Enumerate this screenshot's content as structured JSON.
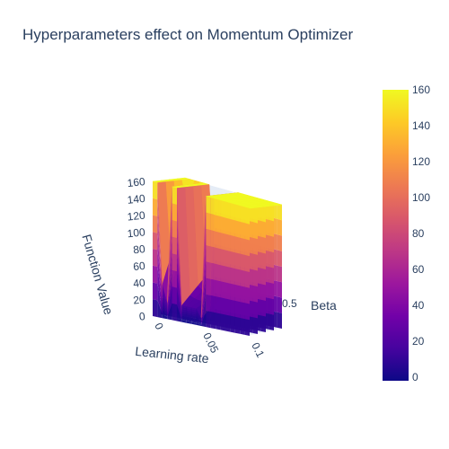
{
  "chart_data": {
    "type": "surface",
    "title": "Hyperparameters effect on Momentum Optimizer",
    "x_axis": {
      "label": "Learning rate",
      "ticks": [
        "0",
        "0.05",
        "0.1"
      ],
      "range": [
        0,
        0.1
      ]
    },
    "y_axis": {
      "label": "Beta",
      "ticks": [
        "0.5"
      ],
      "range": [
        0,
        1
      ]
    },
    "z_axis": {
      "label": "Function Value",
      "ticks": [
        "0",
        "20",
        "40",
        "60",
        "80",
        "100",
        "120",
        "140",
        "160"
      ],
      "range": [
        0,
        160
      ]
    },
    "colorbar": {
      "ticks": [
        "0",
        "20",
        "40",
        "60",
        "80",
        "100",
        "120",
        "140",
        "160"
      ],
      "range": [
        0,
        160
      ]
    },
    "colorscale": [
      "#0d0887",
      "#46039f",
      "#7201a8",
      "#9c179e",
      "#bd3786",
      "#d8576b",
      "#ed7953",
      "#fb9f3a",
      "#fdca26",
      "#f0f921"
    ],
    "surface_profile": {
      "learning_rate": [
        0.0,
        0.005,
        0.01,
        0.015,
        0.02,
        0.025,
        0.03,
        0.035,
        0.04,
        0.045,
        0.05,
        0.055,
        0.06,
        0.065,
        0.07,
        0.075,
        0.08,
        0.085,
        0.09,
        0.095,
        0.1
      ],
      "function_value_front": [
        160,
        160,
        40,
        20,
        160,
        160,
        20,
        20,
        20,
        20,
        10,
        160,
        160,
        160,
        160,
        160,
        160,
        160,
        160,
        160,
        160
      ],
      "function_value_back": [
        160,
        160,
        160,
        160,
        160,
        160,
        60,
        50,
        45,
        40,
        40,
        160,
        160,
        160,
        160,
        160,
        160,
        160,
        160,
        160,
        160
      ]
    },
    "grid": true,
    "legend": "none"
  }
}
